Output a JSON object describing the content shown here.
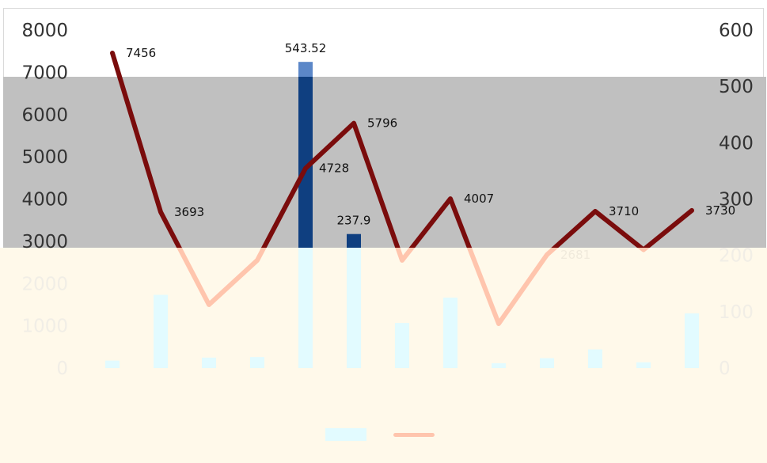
{
  "chart_data": {
    "type": "bar+line",
    "categories": [
      "",
      "",
      "",
      "",
      "",
      "",
      "",
      "",
      "",
      "",
      "",
      "",
      ""
    ],
    "series": [
      {
        "type": "bar",
        "axis": "right",
        "values": [
          13.2,
          130,
          18.5,
          19.5,
          543.52,
          237.9,
          80,
          125,
          8.5,
          17.5,
          33,
          10.2,
          97
        ],
        "labels": [
          "",
          "",
          "",
          "",
          "543.52",
          "237.9",
          "",
          "",
          "",
          "",
          "",
          "",
          ""
        ]
      },
      {
        "type": "line",
        "axis": "left",
        "values": [
          7456,
          3693,
          1500,
          2550,
          4728,
          5796,
          2550,
          4007,
          1050,
          2681,
          3710,
          2800,
          3730
        ],
        "labels": [
          "7456",
          "3693",
          "",
          "",
          "4728",
          "5796",
          "",
          "4007",
          "",
          "2681",
          "3710",
          "",
          "3730"
        ]
      }
    ],
    "y_left": {
      "min": 0,
      "max": 8000,
      "ticks": [
        0,
        1000,
        2000,
        3000,
        4000,
        5000,
        6000,
        7000,
        8000
      ]
    },
    "y_right": {
      "min": 0,
      "max": 600,
      "ticks": [
        0,
        100,
        200,
        300,
        400,
        500,
        600
      ]
    },
    "legend": {
      "position": "bottom",
      "entries": [
        "",
        ""
      ]
    },
    "grid": false
  },
  "colors": {
    "bar_in_gray": "#0f3f80",
    "bar_top": "#5b87c8",
    "bar_in_cream": "#e2fbff",
    "line_upper": "#7a0c0c",
    "line_lower": "#ffc5ad",
    "band_gray": "#c0c0c0",
    "band_cream": "#fff9ea"
  }
}
